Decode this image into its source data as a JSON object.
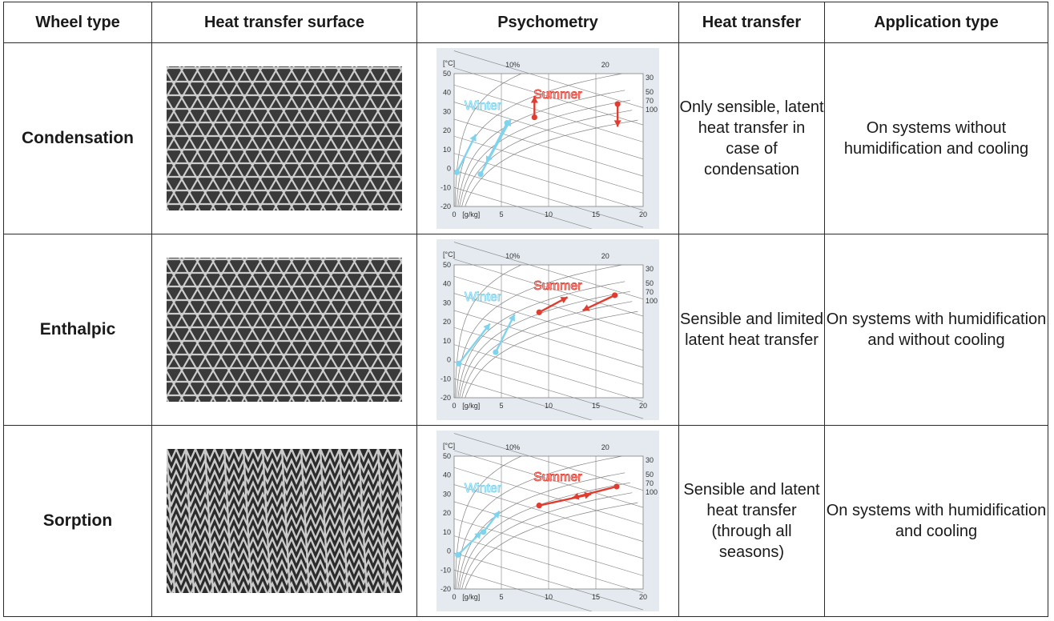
{
  "headers": [
    "Wheel type",
    "Heat transfer surface",
    "Psychometry",
    "Heat transfer",
    "Application type"
  ],
  "chart_common": {
    "y_unit": "[°C]",
    "y_ticks": [
      "50",
      "40",
      "30",
      "20",
      "10",
      "0",
      "-10",
      "-20"
    ],
    "x_ticks": [
      "0",
      "[g/kg]",
      "5",
      "10",
      "15",
      "20"
    ],
    "rh_top": [
      "10%",
      "20"
    ],
    "rh_right": [
      "30",
      "50",
      "70",
      "100"
    ],
    "winter_label": "Winter",
    "summer_label": "Summer",
    "winter_color": "#7fd3ec",
    "summer_color": "#e03c2f",
    "panel_color": "#e4eaf0",
    "grid_color": "#808080"
  },
  "rows": [
    {
      "wheel_type": "Condensation",
      "surface_pattern": "triangle-mesh",
      "heat_transfer": "Only sensible, latent heat transfer in case of condensation",
      "application": "On systems without humidification and cooling"
    },
    {
      "wheel_type": "Enthalpic",
      "surface_pattern": "triangle-mesh",
      "heat_transfer": "Sensible and limited latent heat transfer",
      "application": "On systems with humidification and without cooling"
    },
    {
      "wheel_type": "Sorption",
      "surface_pattern": "zigzag-mesh",
      "heat_transfer": "Sensible and latent heat transfer (through all seasons)",
      "application": "On systems with humidification and cooling"
    }
  ]
}
